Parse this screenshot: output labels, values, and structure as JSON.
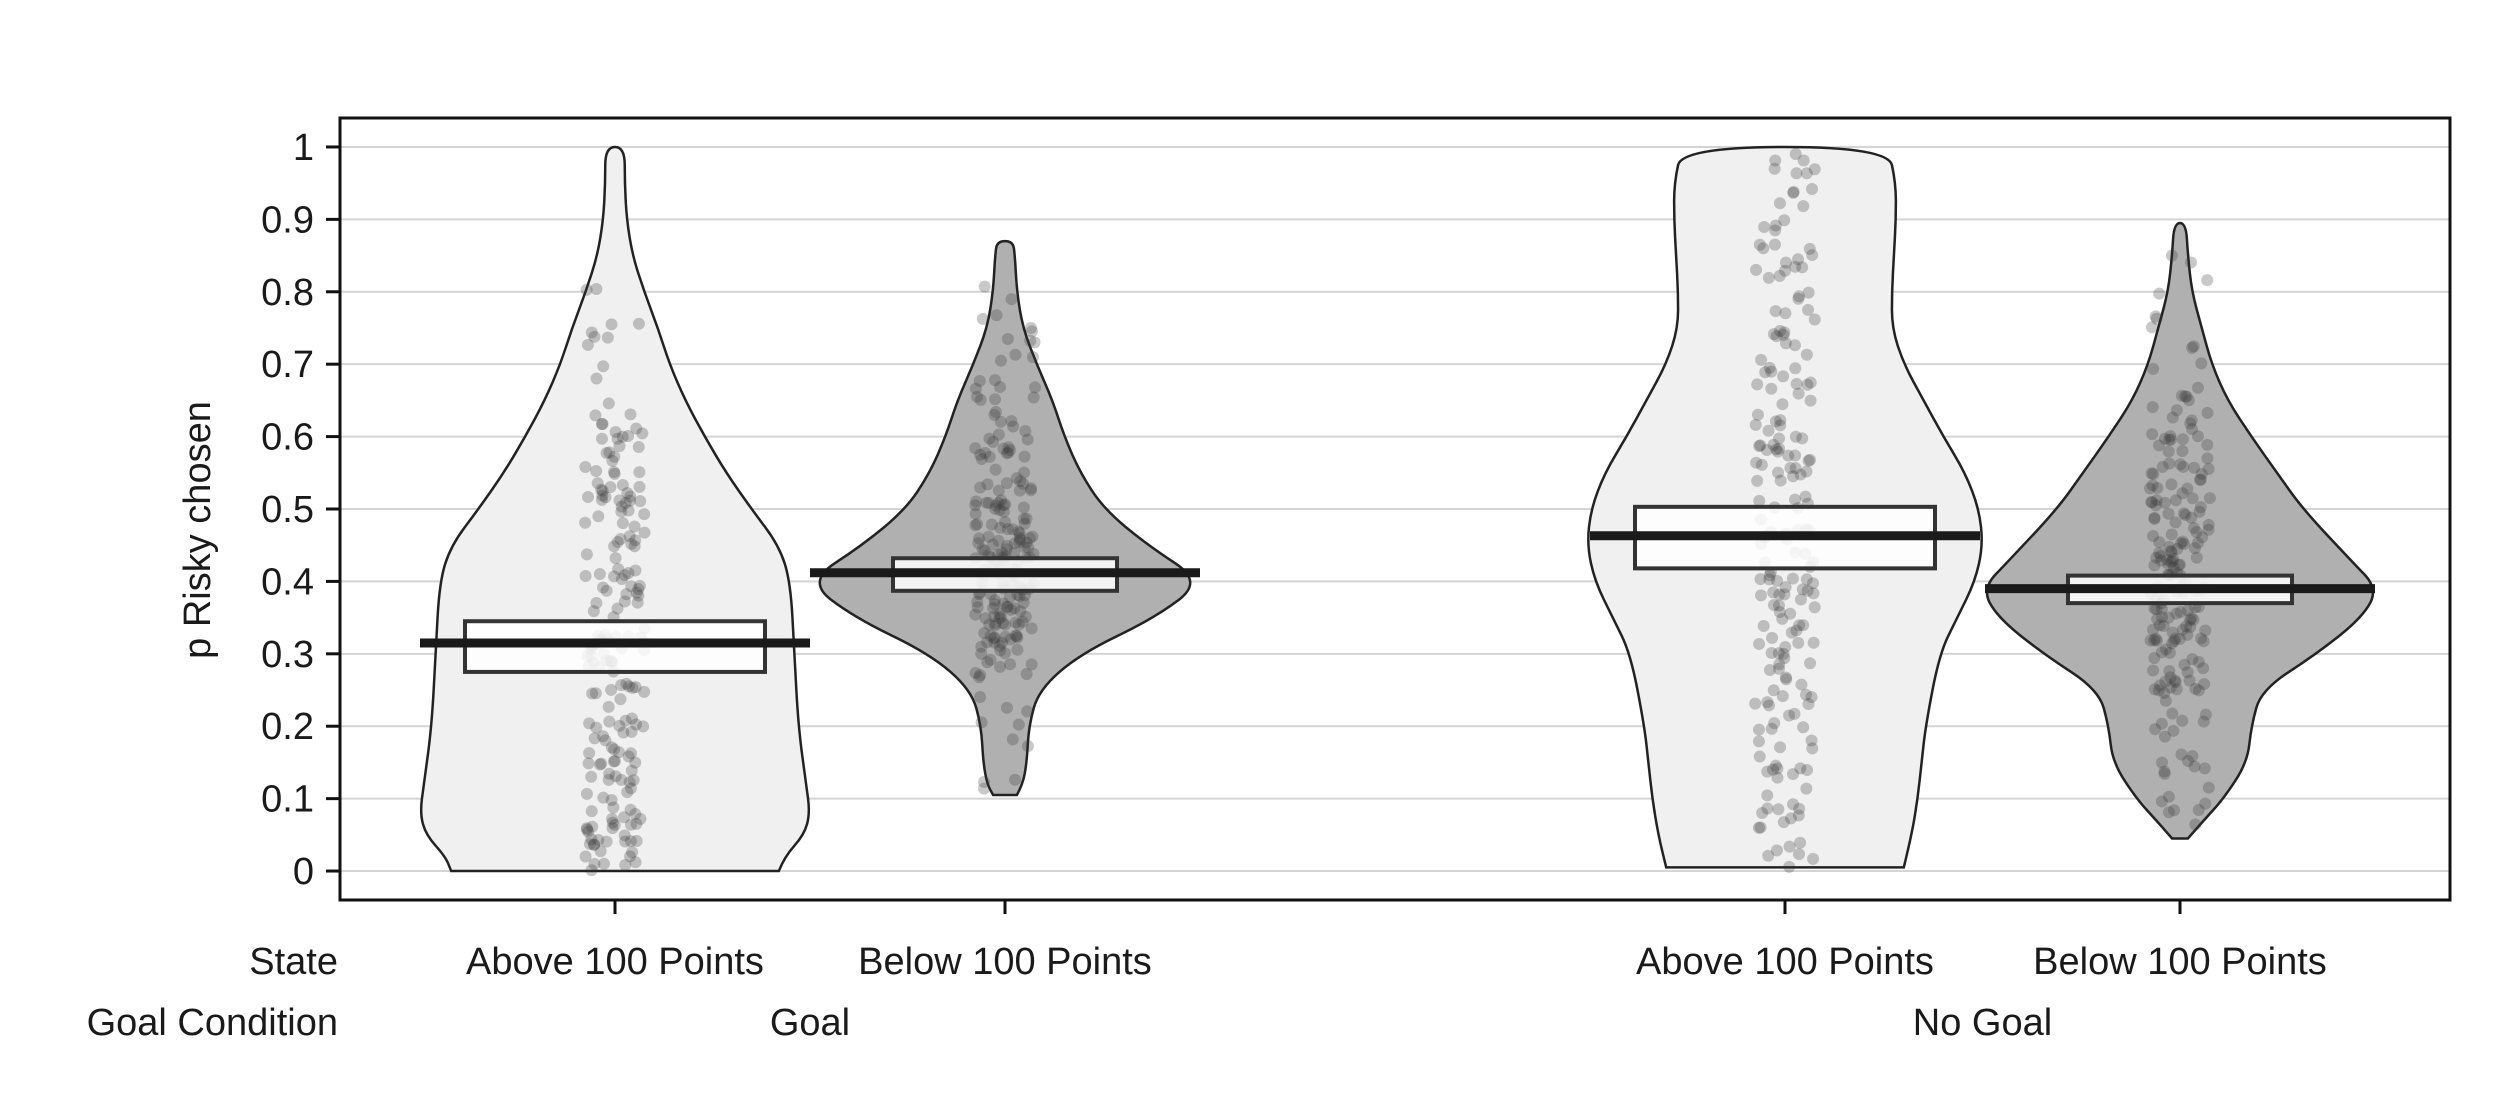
{
  "chart_data": {
    "type": "violin",
    "ylabel": "p Risky chosen",
    "ylim": [
      -0.04,
      1.04
    ],
    "yticks": [
      0,
      0.1,
      0.2,
      0.3,
      0.4,
      0.5,
      0.6,
      0.7,
      0.8,
      0.9,
      1
    ],
    "ytick_labels": [
      "0",
      "0.1",
      "0.2",
      "0.3",
      "0.4",
      "0.5",
      "0.6",
      "0.7",
      "0.8",
      "0.9",
      "1"
    ],
    "grid": true,
    "row_labels": {
      "state": "State",
      "goal_condition": "Goal Condition"
    },
    "groups": [
      {
        "goal_condition": "Goal",
        "conditions": [
          {
            "state": "Above 100 Points",
            "fill": "#f0f0f0",
            "mean": 0.315,
            "ci_low": 0.275,
            "ci_high": 0.345,
            "density": [
              [
                0,
                0.84
              ],
              [
                0.02,
                0.87
              ],
              [
                0.05,
                0.97
              ],
              [
                0.08,
                1.0
              ],
              [
                0.12,
                0.98
              ],
              [
                0.2,
                0.94
              ],
              [
                0.3,
                0.92
              ],
              [
                0.4,
                0.9
              ],
              [
                0.45,
                0.84
              ],
              [
                0.5,
                0.7
              ],
              [
                0.55,
                0.57
              ],
              [
                0.6,
                0.46
              ],
              [
                0.65,
                0.36
              ],
              [
                0.7,
                0.28
              ],
              [
                0.75,
                0.22
              ],
              [
                0.8,
                0.15
              ],
              [
                0.85,
                0.09
              ],
              [
                0.9,
                0.06
              ],
              [
                0.95,
                0.05
              ],
              [
                1.0,
                0.05
              ]
            ]
          },
          {
            "state": "Below 100 Points",
            "fill": "#b0b0b0",
            "mean": 0.412,
            "ci_low": 0.387,
            "ci_high": 0.432,
            "density": [
              [
                0.105,
                0.06
              ],
              [
                0.12,
                0.09
              ],
              [
                0.15,
                0.11
              ],
              [
                0.2,
                0.12
              ],
              [
                0.25,
                0.17
              ],
              [
                0.3,
                0.38
              ],
              [
                0.35,
                0.76
              ],
              [
                0.4,
                1.0
              ],
              [
                0.45,
                0.72
              ],
              [
                0.5,
                0.5
              ],
              [
                0.55,
                0.38
              ],
              [
                0.6,
                0.3
              ],
              [
                0.65,
                0.24
              ],
              [
                0.7,
                0.16
              ],
              [
                0.75,
                0.09
              ],
              [
                0.8,
                0.06
              ],
              [
                0.85,
                0.05
              ],
              [
                0.87,
                0.04
              ]
            ]
          }
        ]
      },
      {
        "goal_condition": "No Goal",
        "conditions": [
          {
            "state": "Above 100 Points",
            "fill": "#f0f0f0",
            "mean": 0.463,
            "ci_low": 0.418,
            "ci_high": 0.503,
            "density": [
              [
                0.005,
                0.6
              ],
              [
                0.05,
                0.64
              ],
              [
                0.1,
                0.67
              ],
              [
                0.15,
                0.69
              ],
              [
                0.2,
                0.71
              ],
              [
                0.3,
                0.78
              ],
              [
                0.35,
                0.87
              ],
              [
                0.4,
                0.96
              ],
              [
                0.45,
                1.0
              ],
              [
                0.5,
                0.98
              ],
              [
                0.55,
                0.91
              ],
              [
                0.6,
                0.8
              ],
              [
                0.65,
                0.7
              ],
              [
                0.7,
                0.6
              ],
              [
                0.75,
                0.54
              ],
              [
                0.8,
                0.54
              ],
              [
                0.85,
                0.55
              ],
              [
                0.9,
                0.56
              ],
              [
                0.95,
                0.56
              ],
              [
                1.0,
                0.52
              ]
            ]
          },
          {
            "state": "Below 100 Points",
            "fill": "#b0b0b0",
            "mean": 0.39,
            "ci_low": 0.37,
            "ci_high": 0.408,
            "density": [
              [
                0.045,
                0.04
              ],
              [
                0.07,
                0.12
              ],
              [
                0.1,
                0.22
              ],
              [
                0.15,
                0.34
              ],
              [
                0.2,
                0.36
              ],
              [
                0.25,
                0.41
              ],
              [
                0.3,
                0.69
              ],
              [
                0.35,
                0.92
              ],
              [
                0.39,
                1.0
              ],
              [
                0.43,
                0.86
              ],
              [
                0.5,
                0.62
              ],
              [
                0.55,
                0.49
              ],
              [
                0.6,
                0.36
              ],
              [
                0.65,
                0.24
              ],
              [
                0.7,
                0.16
              ],
              [
                0.75,
                0.11
              ],
              [
                0.8,
                0.06
              ],
              [
                0.85,
                0.04
              ],
              [
                0.895,
                0.03
              ]
            ]
          }
        ]
      }
    ]
  }
}
